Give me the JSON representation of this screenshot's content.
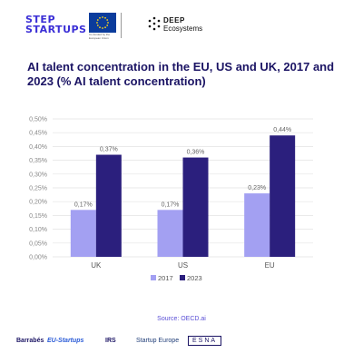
{
  "header": {
    "logo_step_line1": "STEP",
    "logo_step_line2": "STARTUPS",
    "eu_caption": "Co-funded by the European Union",
    "deep_line1": "DEEP",
    "deep_line2": "Ecosystems"
  },
  "chart_data": {
    "type": "bar",
    "title": "AI talent concentration in the EU, US and UK, 2017 and 2023 (% AI talent concentration)",
    "categories": [
      "UK",
      "US",
      "EU"
    ],
    "series": [
      {
        "name": "2017",
        "values": [
          0.17,
          0.17,
          0.23
        ],
        "labels": [
          "0,17%",
          "0,17%",
          "0,23%"
        ],
        "color": "#a3a0f2"
      },
      {
        "name": "2023",
        "values": [
          0.37,
          0.36,
          0.44
        ],
        "labels": [
          "0,37%",
          "0,36%",
          "0,44%"
        ],
        "color": "#2b1f7d"
      }
    ],
    "ylim": [
      0,
      0.5
    ],
    "yticks": [
      "0,00%",
      "0,05%",
      "0,10%",
      "0,15%",
      "0,20%",
      "0,25%",
      "0,30%",
      "0,35%",
      "0,40%",
      "0,45%",
      "0,50%"
    ],
    "grid": true,
    "legend": "bottom"
  },
  "source": "Source: OECD.ai",
  "footer": {
    "logos": [
      "Barrabés",
      "EU-Startups",
      "IRS",
      "Startup Europe",
      "ESNA"
    ]
  },
  "colors": {
    "title": "#1b1464",
    "accent": "#3b2fd6",
    "grid": "#e3e3e3",
    "axis_text": "#888888"
  }
}
